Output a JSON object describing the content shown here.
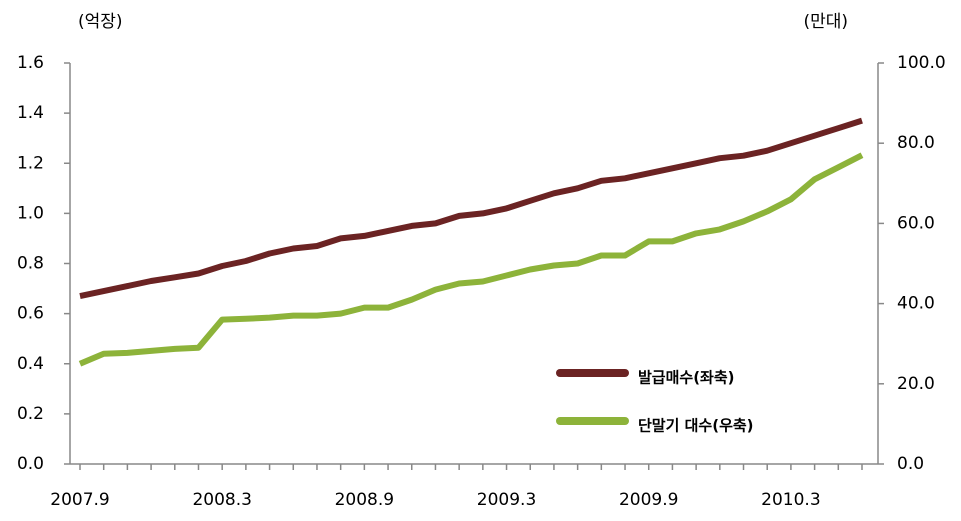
{
  "chart_data": {
    "type": "line",
    "y_unit_label": "(억장)",
    "y2_unit_label": "(만대)",
    "categories": [
      "2007.9",
      null,
      null,
      null,
      null,
      null,
      "2008.3",
      null,
      null,
      null,
      null,
      null,
      "2008.9",
      null,
      null,
      null,
      null,
      null,
      "2009.3",
      null,
      null,
      null,
      null,
      null,
      "2009.9",
      null,
      null,
      null,
      null,
      null,
      "2010.3",
      null,
      null,
      null
    ],
    "series": [
      {
        "name": "발급매수(좌축)",
        "color": "#6b2323",
        "axis": "y",
        "values": [
          0.67,
          0.69,
          0.71,
          0.73,
          0.745,
          0.76,
          0.79,
          0.81,
          0.84,
          0.86,
          0.87,
          0.9,
          0.91,
          0.93,
          0.95,
          0.96,
          0.99,
          1.0,
          1.02,
          1.05,
          1.08,
          1.1,
          1.13,
          1.14,
          1.16,
          1.18,
          1.2,
          1.22,
          1.23,
          1.25,
          1.28,
          1.31,
          1.34,
          1.37
        ]
      },
      {
        "name": "단말기 대수(우축)",
        "color": "#8db33a",
        "axis": "y2",
        "values": [
          25,
          27.5,
          27.7,
          28.2,
          28.7,
          29,
          36,
          36.2,
          36.5,
          37,
          37,
          37.5,
          39,
          39,
          41,
          43.5,
          45,
          45.5,
          47,
          48.5,
          49.5,
          50,
          52,
          52,
          55.5,
          55.5,
          57.5,
          58.5,
          60.5,
          63,
          66,
          71,
          74,
          77
        ]
      }
    ],
    "ylim": [
      0,
      1.6
    ],
    "yticks": [
      {
        "value": 0,
        "label": "0.0"
      },
      0.2,
      0.4,
      0.6,
      0.8,
      {
        "value": 1,
        "label": "1.0"
      },
      1.2,
      1.4,
      1.6
    ],
    "y2lim": [
      0,
      100
    ],
    "y2ticks": [
      {
        "value": 0,
        "label": "0.0"
      },
      {
        "value": 20,
        "label": "20.0"
      },
      {
        "value": 40,
        "label": "40.0"
      },
      {
        "value": 60,
        "label": "60.0"
      },
      {
        "value": 80,
        "label": "80.0"
      },
      {
        "value": 100,
        "label": "100.0"
      }
    ],
    "legend": "lower right"
  }
}
